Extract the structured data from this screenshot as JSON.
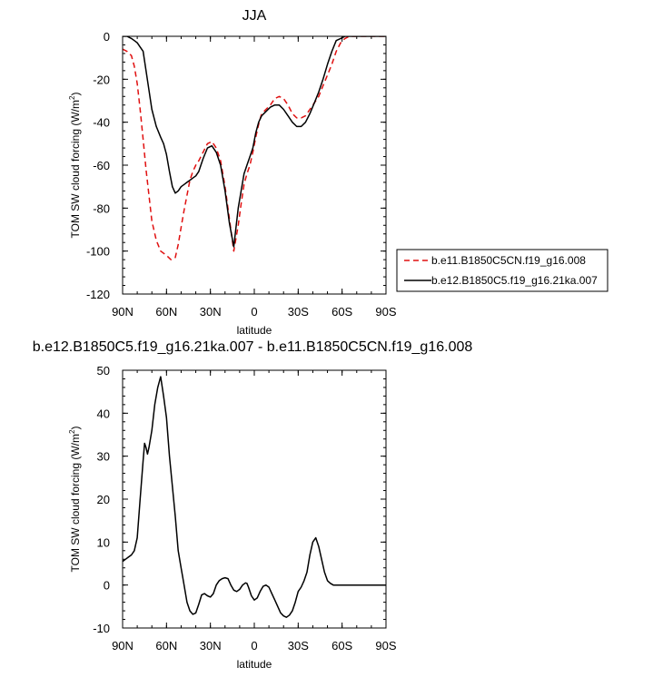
{
  "chart_data": [
    {
      "type": "line",
      "title": "JJA",
      "xlabel": "latitude",
      "ylabel_main": "TOM SW cloud forcing (W/m",
      "ylabel_sup": "2",
      "ylabel_close": ")",
      "xlim": [
        90,
        -90
      ],
      "ylim": [
        -120,
        0
      ],
      "x_ticks": [
        {
          "value": 90,
          "label": "90N"
        },
        {
          "value": 60,
          "label": "60N"
        },
        {
          "value": 30,
          "label": "30N"
        },
        {
          "value": 0,
          "label": "0"
        },
        {
          "value": -30,
          "label": "30S"
        },
        {
          "value": -60,
          "label": "60S"
        },
        {
          "value": -90,
          "label": "90S"
        }
      ],
      "y_ticks": [
        {
          "value": 0,
          "label": "0"
        },
        {
          "value": -20,
          "label": "-20"
        },
        {
          "value": -40,
          "label": "-40"
        },
        {
          "value": -60,
          "label": "-60"
        },
        {
          "value": -80,
          "label": "-80"
        },
        {
          "value": -100,
          "label": "-100"
        },
        {
          "value": -120,
          "label": "-120"
        }
      ],
      "legend_position": "right",
      "series": [
        {
          "name": "b.e11.B1850C5CN.f19_g16.008",
          "color": "#e01010",
          "dash": "dashed",
          "x": [
            90,
            87,
            84,
            82,
            80,
            78,
            76,
            74,
            72,
            70,
            67,
            64,
            60,
            57,
            54,
            52,
            50,
            48,
            46,
            44,
            42,
            40,
            38,
            35,
            32,
            29,
            26,
            23,
            20,
            17,
            14,
            11,
            9,
            7,
            5,
            3,
            1,
            -1,
            -3,
            -5,
            -8,
            -11,
            -14,
            -17,
            -20,
            -23,
            -26,
            -29,
            -32,
            -35,
            -38,
            -41,
            -44,
            -47,
            -50,
            -53,
            -56,
            -59,
            -62,
            -65,
            -68,
            -72,
            -76,
            -80,
            -90
          ],
          "y": [
            -6,
            -7,
            -9,
            -14,
            -22,
            -34,
            -48,
            -62,
            -74,
            -86,
            -95,
            -100,
            -102,
            -104,
            -103,
            -97,
            -89,
            -81,
            -74,
            -67,
            -63,
            -60,
            -58,
            -54,
            -50,
            -49,
            -52,
            -58,
            -70,
            -85,
            -100,
            -88,
            -78,
            -69,
            -64,
            -60,
            -54,
            -47,
            -41,
            -36,
            -34,
            -32,
            -29,
            -28,
            -29,
            -32,
            -36,
            -38,
            -38,
            -37,
            -34,
            -31,
            -28,
            -23,
            -18,
            -13,
            -7,
            -3,
            -1,
            0,
            0,
            0,
            0,
            0,
            0
          ]
        },
        {
          "name": "b.e12.B1850C5.f19_g16.21ka.007",
          "color": "#000000",
          "dash": "solid",
          "x": [
            90,
            87,
            84,
            82,
            80,
            78,
            76,
            74,
            72,
            70,
            67,
            64,
            62,
            60,
            58,
            56,
            54,
            52,
            50,
            48,
            46,
            44,
            42,
            40,
            38,
            35,
            32,
            29,
            26,
            23,
            20,
            17,
            14,
            11,
            9,
            7,
            5,
            3,
            1,
            -1,
            -3,
            -5,
            -8,
            -11,
            -14,
            -17,
            -20,
            -23,
            -26,
            -29,
            -32,
            -35,
            -38,
            -41,
            -44,
            -47,
            -50,
            -53,
            -56,
            -59,
            -62,
            -65,
            -68,
            -72,
            -76,
            -80,
            -90
          ],
          "y": [
            0,
            0,
            -1,
            -2,
            -3,
            -5,
            -7,
            -16,
            -25,
            -34,
            -42,
            -47,
            -50,
            -55,
            -63,
            -70,
            -73,
            -72,
            -70,
            -69,
            -68,
            -67,
            -66,
            -65,
            -63,
            -57,
            -52,
            -51,
            -54,
            -60,
            -72,
            -87,
            -98,
            -80,
            -72,
            -64,
            -60,
            -56,
            -52,
            -45,
            -40,
            -37,
            -35,
            -33,
            -32,
            -32,
            -34,
            -37,
            -40,
            -42,
            -42,
            -40,
            -36,
            -31,
            -26,
            -20,
            -13,
            -7,
            -2,
            -1,
            0,
            0,
            0,
            0,
            0,
            0,
            0
          ]
        }
      ]
    },
    {
      "type": "line",
      "title": "b.e12.B1850C5.f19_g16.21ka.007 - b.e11.B1850C5CN.f19_g16.008",
      "xlabel": "latitude",
      "ylabel_main": "TOM SW cloud forcing (W/m",
      "ylabel_sup": "2",
      "ylabel_close": ")",
      "xlim": [
        90,
        -90
      ],
      "ylim": [
        -10,
        50
      ],
      "x_ticks": [
        {
          "value": 90,
          "label": "90N"
        },
        {
          "value": 60,
          "label": "60N"
        },
        {
          "value": 30,
          "label": "30N"
        },
        {
          "value": 0,
          "label": "0"
        },
        {
          "value": -30,
          "label": "30S"
        },
        {
          "value": -60,
          "label": "60S"
        },
        {
          "value": -90,
          "label": "90S"
        }
      ],
      "y_ticks": [
        {
          "value": 50,
          "label": "50"
        },
        {
          "value": 40,
          "label": "40"
        },
        {
          "value": 30,
          "label": "30"
        },
        {
          "value": 20,
          "label": "20"
        },
        {
          "value": 10,
          "label": "10"
        },
        {
          "value": 0,
          "label": "0"
        },
        {
          "value": -10,
          "label": "-10"
        }
      ],
      "series": [
        {
          "color": "#000000",
          "dash": "solid",
          "x": [
            90,
            88,
            86,
            84,
            82,
            80,
            78,
            76,
            75,
            74,
            73,
            72,
            71,
            70,
            68,
            66,
            64,
            62,
            60,
            58,
            56,
            54,
            52,
            50,
            48,
            46,
            44,
            42,
            40,
            38,
            36,
            34,
            32,
            30,
            28,
            26,
            24,
            22,
            20,
            18,
            16,
            14,
            12,
            10,
            8,
            6,
            5,
            4,
            2,
            0,
            -2,
            -4,
            -6,
            -8,
            -10,
            -12,
            -14,
            -16,
            -18,
            -20,
            -22,
            -24,
            -26,
            -28,
            -30,
            -32,
            -34,
            -36,
            -38,
            -40,
            -42,
            -44,
            -46,
            -48,
            -50,
            -52,
            -54,
            -56,
            -58,
            -60,
            -62,
            -64,
            -66,
            -68,
            -70,
            -75,
            -80,
            -90
          ],
          "y": [
            5.5,
            6,
            6.5,
            7,
            8,
            11,
            20,
            29,
            33,
            32,
            30.5,
            32,
            34,
            36,
            42,
            46,
            48.5,
            44,
            39,
            30,
            23,
            16,
            8,
            4,
            0,
            -4,
            -6,
            -6.8,
            -6.5,
            -4.5,
            -2.3,
            -2,
            -2.5,
            -2.8,
            -2,
            0,
            1,
            1.5,
            1.7,
            1.5,
            0,
            -1.2,
            -1.5,
            -1,
            0,
            0.5,
            0.4,
            -0.5,
            -2.5,
            -3.5,
            -3,
            -1.5,
            -0.3,
            0,
            -0.5,
            -2,
            -3.5,
            -5,
            -6.5,
            -7.2,
            -7.5,
            -7,
            -6,
            -4,
            -1.5,
            -0.5,
            1,
            3,
            7,
            10,
            11,
            9,
            6,
            3,
            1,
            0.4,
            0,
            0,
            0,
            0,
            0,
            0,
            0,
            0,
            0,
            0,
            0,
            0
          ]
        }
      ]
    }
  ]
}
